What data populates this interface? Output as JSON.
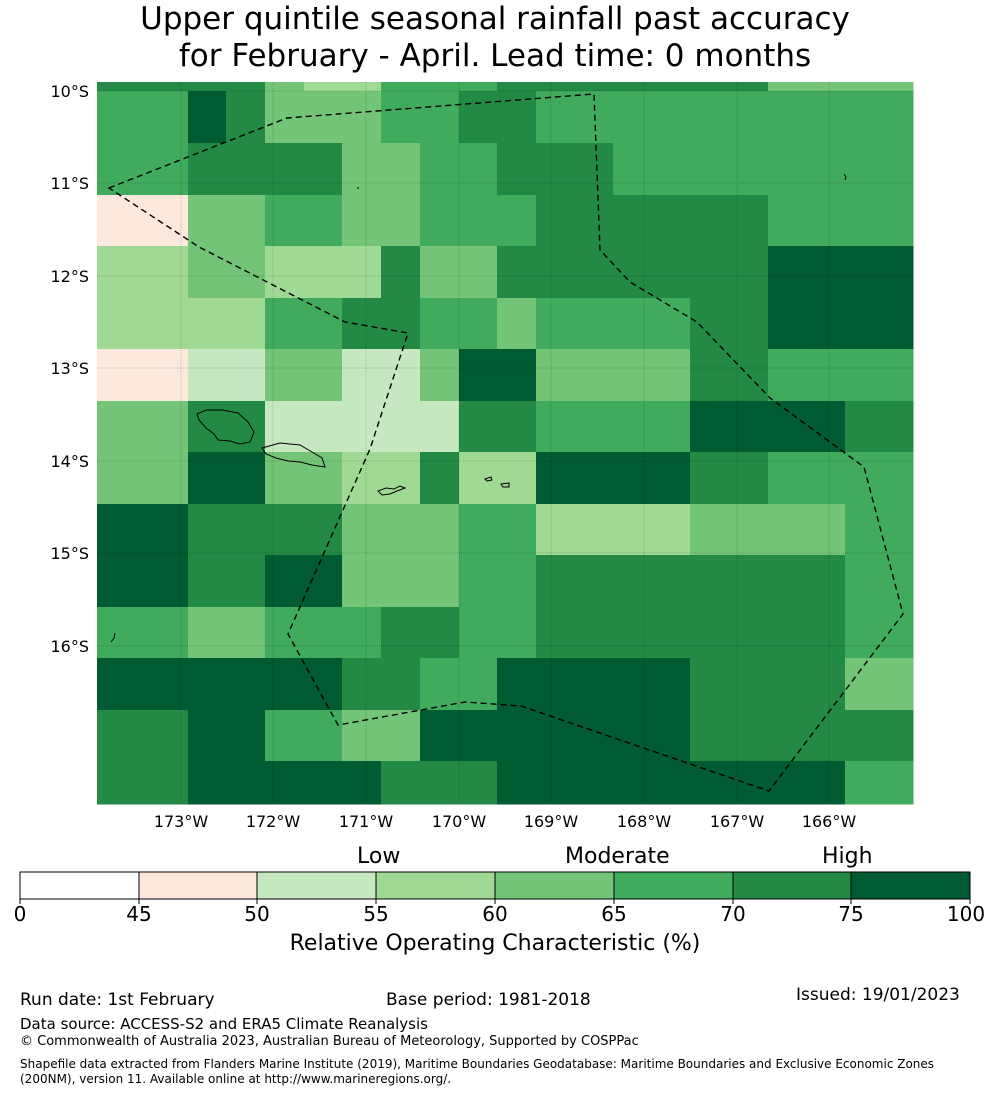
{
  "title": {
    "line1": "Upper quintile seasonal rainfall past accuracy",
    "line2": "for February - April. Lead time: 0 months"
  },
  "map": {
    "lat_labels": [
      "10°S",
      "11°S",
      "12°S",
      "13°S",
      "14°S",
      "15°S",
      "16°S"
    ],
    "lon_labels": [
      "173°W",
      "172°W",
      "171°W",
      "170°W",
      "169°W",
      "168°W",
      "167°W",
      "166°W"
    ],
    "palette": [
      "#ffffff",
      "#fee8de",
      "#c6e8c1",
      "#a0d993",
      "#73c476",
      "#41ab5d",
      "#228a44",
      "#005a32"
    ],
    "grid": [
      [
        6,
        6,
        6,
        6,
        4,
        3,
        3,
        5,
        5,
        5,
        6,
        6,
        6,
        6,
        4,
        4
      ],
      [
        5,
        5,
        7,
        6,
        4,
        4,
        4,
        5,
        5,
        6,
        6,
        5,
        5,
        5,
        5,
        5
      ],
      [
        5,
        5,
        6,
        6,
        6,
        6,
        4,
        4,
        5,
        5,
        6,
        6,
        5,
        5,
        5,
        5
      ],
      [
        1,
        1,
        4,
        4,
        5,
        5,
        4,
        4,
        5,
        5,
        5,
        6,
        6,
        6,
        5,
        5
      ],
      [
        3,
        3,
        4,
        4,
        3,
        3,
        3,
        6,
        4,
        4,
        6,
        6,
        6,
        6,
        7,
        7
      ],
      [
        3,
        3,
        3,
        3,
        5,
        5,
        6,
        6,
        5,
        5,
        4,
        5,
        5,
        6,
        7,
        7
      ],
      [
        1,
        1,
        2,
        2,
        4,
        4,
        2,
        2,
        4,
        7,
        7,
        4,
        4,
        6,
        5,
        5
      ],
      [
        4,
        4,
        6,
        6,
        2,
        2,
        2,
        2,
        2,
        6,
        6,
        5,
        5,
        7,
        7,
        6
      ],
      [
        4,
        4,
        7,
        7,
        4,
        4,
        3,
        3,
        6,
        3,
        3,
        7,
        7,
        6,
        5,
        5
      ],
      [
        7,
        7,
        6,
        6,
        6,
        6,
        4,
        4,
        4,
        5,
        5,
        3,
        3,
        4,
        4,
        5
      ],
      [
        7,
        7,
        6,
        6,
        7,
        7,
        4,
        4,
        4,
        5,
        5,
        6,
        6,
        6,
        6,
        5
      ],
      [
        5,
        5,
        4,
        4,
        5,
        5,
        5,
        6,
        6,
        5,
        5,
        6,
        6,
        6,
        6,
        5
      ],
      [
        7,
        7,
        7,
        7,
        7,
        7,
        6,
        6,
        5,
        5,
        7,
        7,
        7,
        6,
        6,
        4
      ],
      [
        6,
        6,
        7,
        7,
        5,
        5,
        4,
        4,
        7,
        7,
        7,
        7,
        7,
        6,
        6,
        6
      ],
      [
        6,
        6,
        7,
        7,
        7,
        7,
        7,
        6,
        6,
        6,
        7,
        7,
        7,
        7,
        7,
        5
      ]
    ]
  },
  "colorbar": {
    "category_labels": [
      "Low",
      "Moderate",
      "High"
    ],
    "ticks": [
      "0",
      "45",
      "50",
      "55",
      "60",
      "65",
      "70",
      "75",
      "100"
    ],
    "colors": [
      "#ffffff",
      "#fee8de",
      "#c6e8c1",
      "#a0d993",
      "#73c476",
      "#41ab5d",
      "#228a44",
      "#005a32"
    ],
    "axis_label": "Relative Operating Characteristic (%)"
  },
  "footer": {
    "run_date": "Run date: 1st February",
    "base_period": "Base period: 1981-2018",
    "issued": "Issued: 19/01/2023",
    "data_source": "Data source: ACCESS-S2 and ERA5 Climate Reanalysis",
    "copyright": "© Commonwealth of Australia 2023, Australian Bureau of Meteorology, Supported by COSPPac",
    "shapefile": "Shapefile data extracted from Flanders Marine Institute (2019), Maritime Boundaries Geodatabase: Maritime Boundaries and Exclusive Economic Zones (200NM), version 11. Available online at http://www.marineregions.org/."
  }
}
